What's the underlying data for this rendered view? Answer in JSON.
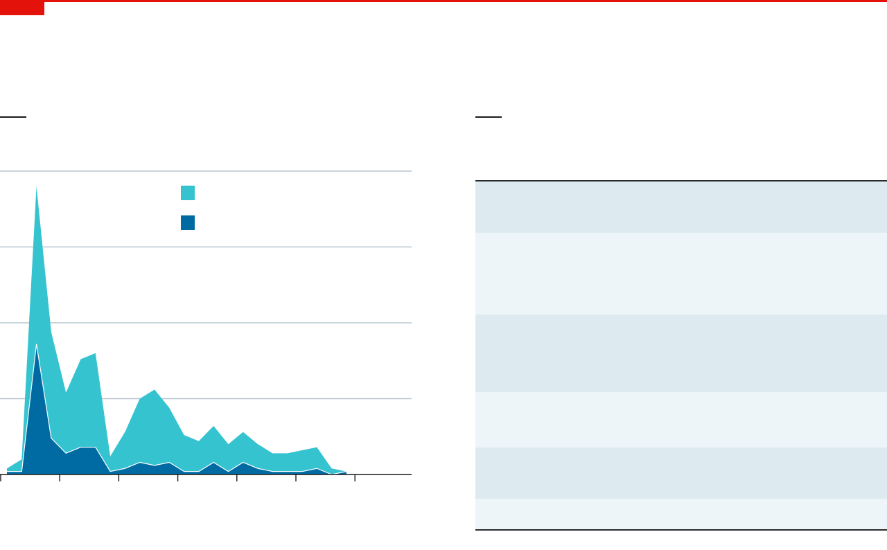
{
  "colors": {
    "accent": "#e3120b",
    "gridline": "#b7c6cf",
    "axis": "#1a1a1a",
    "series_light": "#36c3d0",
    "series_dark": "#006ba2",
    "table_row_odd": "#ddeaf0",
    "table_row_even": "#edf5f9"
  },
  "chart_data": {
    "type": "area",
    "stacked": true,
    "title": "",
    "xlabel": "",
    "ylabel": "",
    "x": [
      0,
      1,
      2,
      3,
      4,
      5,
      6,
      7,
      8,
      9,
      10,
      11,
      12,
      13,
      14,
      15,
      16,
      17,
      18,
      19,
      20,
      21,
      22,
      23
    ],
    "ylim": [
      0,
      100
    ],
    "grid": true,
    "legend": "top-center",
    "series": [
      {
        "values": [
          1,
          4,
          52,
          35,
          20,
          29,
          31,
          5,
          12,
          21,
          25,
          18,
          12,
          10,
          12,
          9,
          10,
          8,
          6,
          6,
          7,
          7,
          2,
          0
        ]
      },
      {
        "values": [
          1,
          1,
          43,
          12,
          7,
          9,
          9,
          1,
          2,
          4,
          3,
          4,
          1,
          1,
          4,
          1,
          4,
          2,
          1,
          1,
          1,
          2,
          0,
          1
        ]
      }
    ]
  },
  "table": {
    "rows": [
      {
        "height": 74
      },
      {
        "height": 118
      },
      {
        "height": 112
      },
      {
        "height": 80
      },
      {
        "height": 74
      },
      {
        "height": 44
      }
    ]
  }
}
